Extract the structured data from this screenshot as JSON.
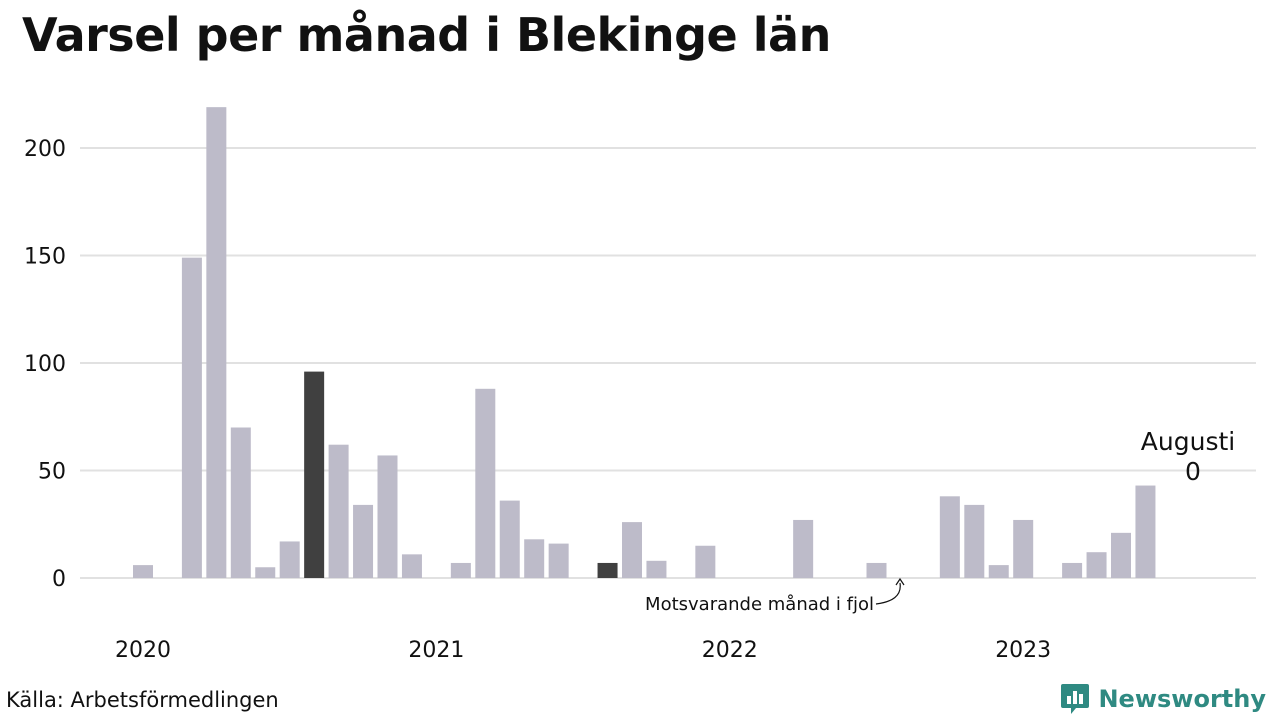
{
  "title": "Varsel per månad i Blekinge län",
  "source": "Källa: Arbetsförmedlingen",
  "brand": "Newsworthy",
  "colors": {
    "bar": "#bdbbc9",
    "highlight": "#404040",
    "grid": "#e1e1e1",
    "brand": "#2f8a82"
  },
  "chart_data": {
    "type": "bar",
    "ylim": [
      0,
      230
    ],
    "y_ticks": [
      0,
      50,
      100,
      150,
      200
    ],
    "x_tick_labels": [
      "2020",
      "2021",
      "2022",
      "2023"
    ],
    "categories": [
      "2020-01",
      "2020-02",
      "2020-03",
      "2020-04",
      "2020-05",
      "2020-06",
      "2020-07",
      "2020-08",
      "2020-09",
      "2020-10",
      "2020-11",
      "2020-12",
      "2021-01",
      "2021-02",
      "2021-03",
      "2021-04",
      "2021-05",
      "2021-06",
      "2021-07",
      "2021-08",
      "2021-09",
      "2021-10",
      "2021-11",
      "2021-12",
      "2022-01",
      "2022-02",
      "2022-03",
      "2022-04",
      "2022-05",
      "2022-06",
      "2022-07",
      "2022-08",
      "2022-09",
      "2022-10",
      "2022-11",
      "2022-12",
      "2023-01",
      "2023-02",
      "2023-03",
      "2023-04",
      "2023-05",
      "2023-06",
      "2023-07",
      "2023-08"
    ],
    "values": [
      6,
      0,
      149,
      219,
      70,
      5,
      17,
      96,
      62,
      34,
      57,
      11,
      0,
      7,
      88,
      36,
      18,
      16,
      0,
      7,
      26,
      8,
      0,
      15,
      0,
      0,
      0,
      27,
      0,
      0,
      7,
      0,
      0,
      38,
      34,
      6,
      27,
      0,
      7,
      12,
      21,
      43,
      0,
      0
    ],
    "highlighted": [
      "2020-08",
      "2021-08"
    ],
    "annotations": {
      "current_label": "Augusti",
      "current_value": "0",
      "previous_year_label": "Motsvarande månad i fjol"
    }
  }
}
